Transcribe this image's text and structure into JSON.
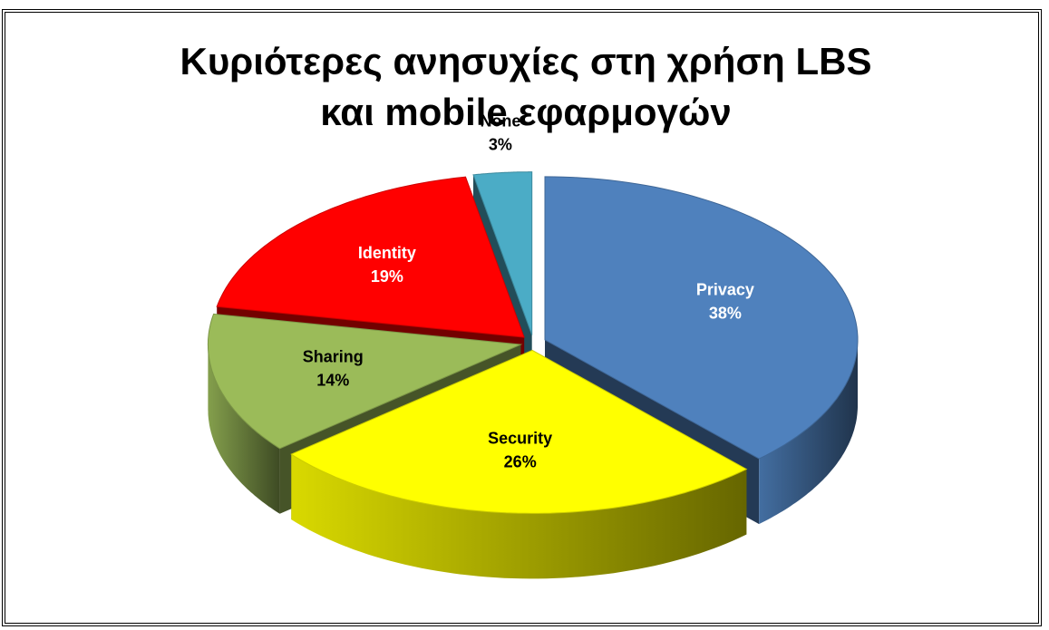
{
  "chart_data": {
    "type": "pie",
    "title": "Κυριότερες ανησυχίες στη χρήση LBS και mobile εφαρμογών",
    "categories": [
      "Privacy",
      "Security",
      "Sharing",
      "Identity",
      "None"
    ],
    "values": [
      38,
      26,
      14,
      19,
      3
    ],
    "value_labels": [
      "38%",
      "26%",
      "14%",
      "19%",
      "3%"
    ],
    "colors": [
      "#4f81bd",
      "#ffff00",
      "#9bbb59",
      "#ff0000",
      "#4bacc6"
    ],
    "start_angle": 0,
    "direction": "clockwise",
    "three_d": true,
    "exploded": true
  }
}
